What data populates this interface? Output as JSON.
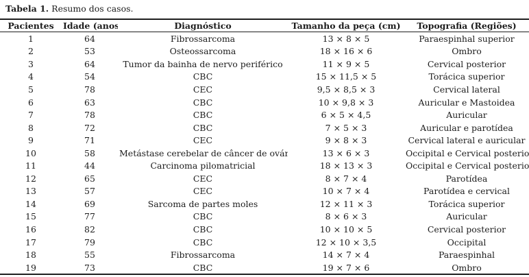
{
  "page": {
    "background": "#ffffff",
    "text_color": "#1c1c1c",
    "rule_color": "#1e1e1e"
  },
  "caption": {
    "label": "Tabela 1.",
    "text": "Resumo dos casos."
  },
  "table": {
    "column_keys": [
      "pacientes",
      "idade",
      "diagnostico",
      "tamanho",
      "topografia"
    ],
    "columns": [
      "Pacientes",
      "Idade (anos)",
      "Diagnóstico",
      "Tamanho da peça (cm)",
      "Topografia (Regiões)"
    ],
    "rows": [
      [
        "1",
        "64",
        "Fibrossarcoma",
        "13 × 8 × 5",
        "Paraespinhal superior"
      ],
      [
        "2",
        "53",
        "Osteossarcoma",
        "18 × 16 × 6",
        "Ombro"
      ],
      [
        "3",
        "64",
        "Tumor da bainha de nervo periférico",
        "11 × 9 × 5",
        "Cervical posterior"
      ],
      [
        "4",
        "54",
        "CBC",
        "15 × 11,5 × 5",
        "Torácica superior"
      ],
      [
        "5",
        "78",
        "CEC",
        "9,5 × 8,5 × 3",
        "Cervical lateral"
      ],
      [
        "6",
        "63",
        "CBC",
        "10 × 9,8 × 3",
        "Auricular e Mastoidea"
      ],
      [
        "7",
        "78",
        "CBC",
        "6 × 5 × 4,5",
        "Auricular"
      ],
      [
        "8",
        "72",
        "CBC",
        "7 × 5 × 3",
        "Auricular e parotídea"
      ],
      [
        "9",
        "71",
        "CEC",
        "9 × 8 × 3",
        "Cervical lateral e auricular"
      ],
      [
        "10",
        "58",
        "Metástase cerebelar de câncer de ovário",
        "13 × 6 × 3",
        "Occipital e Cervical posterior"
      ],
      [
        "11",
        "44",
        "Carcinoma pilomatricial",
        "18 × 13 × 3",
        "Occipital e Cervical posterior"
      ],
      [
        "12",
        "65",
        "CEC",
        "8 × 7 × 4",
        "Parotídea"
      ],
      [
        "13",
        "57",
        "CEC",
        "10 × 7 × 4",
        "Parotídea e cervical"
      ],
      [
        "14",
        "69",
        "Sarcoma de partes moles",
        "12 × 11 × 3",
        "Torácica superior"
      ],
      [
        "15",
        "77",
        "CBC",
        "8 × 6 × 3",
        "Auricular"
      ],
      [
        "16",
        "82",
        "CBC",
        "10 × 10 × 5",
        "Cervical posterior"
      ],
      [
        "17",
        "79",
        "CBC",
        "12 × 10 × 3,5",
        "Occipital"
      ],
      [
        "18",
        "55",
        "Fibrossarcoma",
        "14 × 7 × 4",
        "Paraespinhal"
      ],
      [
        "19",
        "73",
        "CBC",
        "19 × 7 × 6",
        "Ombro"
      ]
    ]
  }
}
